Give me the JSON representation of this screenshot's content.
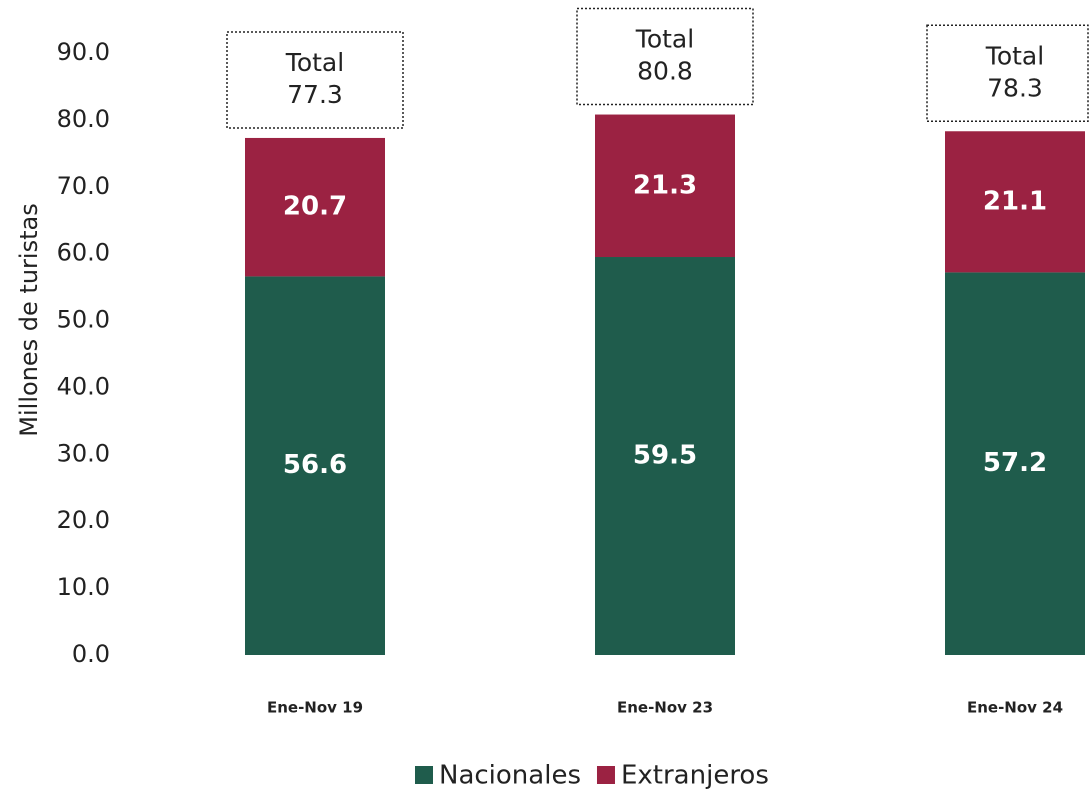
{
  "chart_data": {
    "type": "stacked_bar",
    "y_label": "Millones de turistas",
    "categories": [
      "Ene-Nov 19",
      "Ene-Nov 23",
      "Ene-Nov 24"
    ],
    "series": [
      {
        "name": "Nacionales",
        "color": "#1f5c4c",
        "values": [
          56.6,
          59.5,
          57.2
        ]
      },
      {
        "name": "Extranjeros",
        "color": "#9b2242",
        "values": [
          20.7,
          21.3,
          21.1
        ]
      }
    ],
    "total_label": "Total",
    "totals": [
      77.3,
      80.8,
      78.3
    ],
    "ylim": [
      0,
      90
    ],
    "yticks": [
      {
        "value": 0,
        "label": "0.0"
      },
      {
        "value": 10,
        "label": "10.0"
      },
      {
        "value": 20,
        "label": "20.0"
      },
      {
        "value": 30,
        "label": "30.0"
      },
      {
        "value": 40,
        "label": "40.0"
      },
      {
        "value": 50,
        "label": "50.0"
      },
      {
        "value": 60,
        "label": "60.0"
      },
      {
        "value": 70,
        "label": "70.0"
      },
      {
        "value": 80,
        "label": "80.0"
      },
      {
        "value": 90,
        "label": "90.0"
      }
    ],
    "legend": "bottom"
  }
}
